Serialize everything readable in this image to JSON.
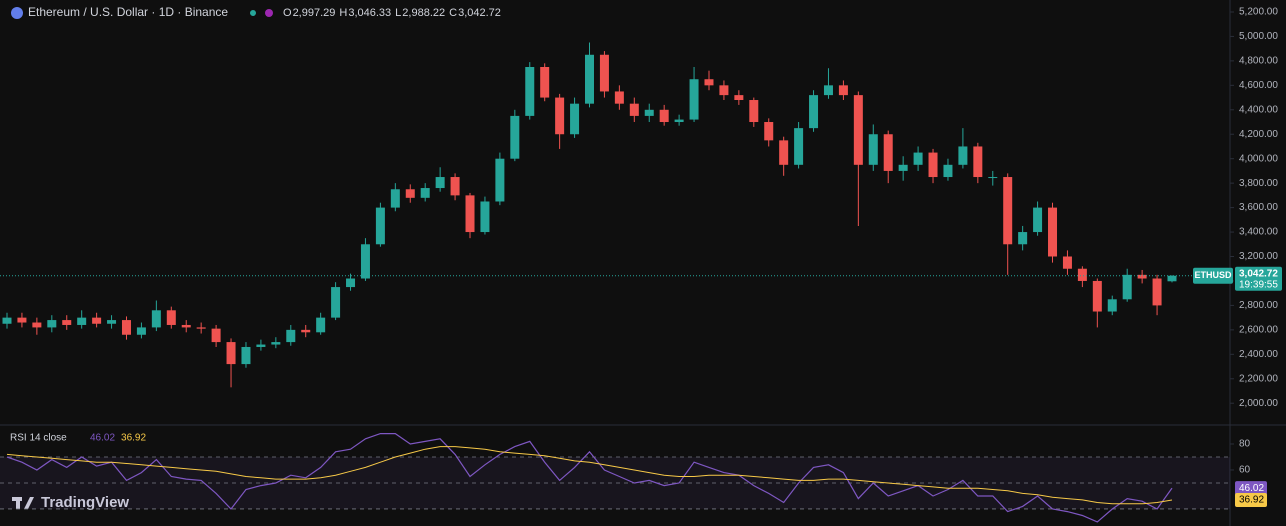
{
  "header": {
    "title": "Ethereum / U.S. Dollar · 1D · Binance",
    "ohlc": [
      {
        "key": "O",
        "text": "2,997.29"
      },
      {
        "key": "H",
        "text": "3,046.33"
      },
      {
        "key": "L",
        "text": "2,988.22"
      },
      {
        "key": "C",
        "text": "3,042.72"
      }
    ],
    "watermark": "TradingView"
  },
  "chart_data": [
    {
      "type": "candlestick",
      "up_color": "#26a69a",
      "down_color": "#ef5350",
      "open": [
        2650,
        2700,
        2660,
        2620,
        2680,
        2640,
        2700,
        2650,
        2680,
        2560,
        2620,
        2760,
        2640,
        2620,
        2610,
        2500,
        2320,
        2460,
        2480,
        2500,
        2600,
        2580,
        2700,
        2950,
        3020,
        3300,
        3600,
        3750,
        3680,
        3760,
        3850,
        3700,
        3400,
        3650,
        4000,
        4350,
        4750,
        4500,
        4200,
        4450,
        4850,
        4550,
        4450,
        4350,
        4400,
        4300,
        4320,
        4650,
        4600,
        4520,
        4480,
        4300,
        4150,
        3950,
        4250,
        4520,
        4600,
        4520,
        3950,
        4200,
        3900,
        3950,
        4050,
        3850,
        3950,
        4100,
        3850,
        3850,
        3300,
        3400,
        3600,
        3200,
        3100,
        3000,
        2750,
        2850,
        3050,
        3020,
        2997.29
      ],
      "high": [
        2740,
        2740,
        2700,
        2720,
        2720,
        2760,
        2740,
        2720,
        2710,
        2660,
        2840,
        2790,
        2680,
        2660,
        2640,
        2530,
        2500,
        2520,
        2540,
        2640,
        2640,
        2740,
        2990,
        3060,
        3350,
        3640,
        3800,
        3790,
        3800,
        3930,
        3880,
        3720,
        3690,
        4050,
        4400,
        4790,
        4780,
        4530,
        4500,
        4950,
        4880,
        4600,
        4500,
        4450,
        4440,
        4360,
        4750,
        4720,
        4640,
        4560,
        4500,
        4330,
        4180,
        4300,
        4560,
        4740,
        4640,
        4550,
        4280,
        4230,
        4020,
        4100,
        4080,
        4000,
        4250,
        4130,
        3900,
        3880,
        3450,
        3650,
        3640,
        3250,
        3120,
        3020,
        2880,
        3100,
        3090,
        3050,
        3046.33
      ],
      "low": [
        2610,
        2620,
        2560,
        2580,
        2600,
        2610,
        2620,
        2610,
        2520,
        2530,
        2590,
        2610,
        2580,
        2570,
        2460,
        2130,
        2290,
        2430,
        2450,
        2470,
        2540,
        2560,
        2680,
        2920,
        3000,
        3280,
        3570,
        3640,
        3650,
        3730,
        3660,
        3350,
        3380,
        3620,
        3980,
        4320,
        4470,
        4080,
        4170,
        4420,
        4500,
        4400,
        4300,
        4300,
        4270,
        4270,
        4300,
        4560,
        4480,
        4440,
        4260,
        4100,
        3860,
        3920,
        4220,
        4490,
        4480,
        3450,
        3900,
        3800,
        3820,
        3900,
        3800,
        3820,
        3920,
        3800,
        3780,
        3050,
        3250,
        3370,
        3150,
        3050,
        2950,
        2620,
        2720,
        2830,
        2980,
        2720,
        2988.22
      ],
      "close": [
        2700,
        2660,
        2620,
        2680,
        2640,
        2700,
        2650,
        2680,
        2560,
        2620,
        2760,
        2640,
        2620,
        2610,
        2500,
        2320,
        2460,
        2480,
        2500,
        2600,
        2580,
        2700,
        2950,
        3020,
        3300,
        3600,
        3750,
        3680,
        3760,
        3850,
        3700,
        3400,
        3650,
        4000,
        4350,
        4750,
        4500,
        4200,
        4450,
        4850,
        4550,
        4450,
        4350,
        4400,
        4300,
        4320,
        4650,
        4600,
        4520,
        4480,
        4300,
        4150,
        3950,
        4250,
        4520,
        4600,
        4520,
        3950,
        4200,
        3900,
        3950,
        4050,
        3850,
        3950,
        4100,
        3850,
        3850,
        3300,
        3400,
        3600,
        3200,
        3100,
        3000,
        2750,
        2850,
        3050,
        3020,
        2800,
        3042.72
      ],
      "ylim": [
        1830,
        5298
      ],
      "yticks": [
        {
          "value": 2000,
          "label": "2,000.00"
        },
        {
          "value": 2200,
          "label": "2,200.00"
        },
        {
          "value": 2400,
          "label": "2,400.00"
        },
        {
          "value": 2600,
          "label": "2,600.00"
        },
        {
          "value": 2800,
          "label": "2,800.00"
        },
        {
          "value": 3000,
          "label": "3,000.00"
        },
        {
          "value": 3200,
          "label": "3,200.00"
        },
        {
          "value": 3400,
          "label": "3,400.00"
        },
        {
          "value": 3600,
          "label": "3,600.00"
        },
        {
          "value": 3800,
          "label": "3,800.00"
        },
        {
          "value": 4000,
          "label": "4,000.00"
        },
        {
          "value": 4200,
          "label": "4,200.00"
        },
        {
          "value": 4400,
          "label": "4,400.00"
        },
        {
          "value": 4600,
          "label": "4,600.00"
        },
        {
          "value": 4800,
          "label": "4,800.00"
        },
        {
          "value": 5000,
          "label": "5,000.00"
        },
        {
          "value": 5200,
          "label": "5,200.00"
        }
      ],
      "last_tag": {
        "symbol": "ETHUSD",
        "price": "3,042.72",
        "countdown": "19:39:55"
      }
    },
    {
      "type": "line",
      "title": "RSI 14 close",
      "ylim": [
        21.5,
        92.3
      ],
      "yticks": [
        80,
        60
      ],
      "levels": [
        70,
        50,
        30
      ],
      "series": [
        {
          "color": "#7e57c2",
          "last_label": "46.02",
          "values": [
            70,
            66,
            60,
            68,
            62,
            70,
            63,
            66,
            52,
            58,
            68,
            55,
            53,
            52,
            42,
            30,
            45,
            48,
            50,
            56,
            54,
            62,
            74,
            76,
            84,
            88,
            88,
            80,
            82,
            84,
            72,
            55,
            64,
            72,
            78,
            82,
            66,
            52,
            62,
            74,
            60,
            55,
            50,
            52,
            48,
            50,
            66,
            62,
            58,
            56,
            48,
            42,
            35,
            50,
            62,
            64,
            58,
            38,
            50,
            40,
            44,
            48,
            40,
            45,
            52,
            40,
            40,
            28,
            32,
            40,
            30,
            28,
            25,
            20,
            30,
            38,
            36,
            30,
            46.02
          ]
        },
        {
          "color": "#f7c948",
          "last_label": "36.92",
          "values": [
            72,
            71,
            70,
            69,
            68,
            67,
            66,
            66,
            65,
            64,
            63,
            62,
            61,
            60,
            59,
            57,
            55,
            54,
            53,
            53,
            53,
            54,
            56,
            59,
            62,
            66,
            70,
            73,
            76,
            78,
            78,
            77,
            76,
            74,
            73,
            72,
            71,
            69,
            67,
            66,
            64,
            62,
            60,
            58,
            56,
            55,
            55,
            56,
            56,
            56,
            55,
            54,
            53,
            52,
            52,
            53,
            53,
            52,
            51,
            50,
            49,
            48,
            47,
            46,
            46,
            46,
            45,
            44,
            42,
            41,
            39,
            38,
            37,
            35,
            34,
            34,
            34,
            35,
            36.92
          ]
        }
      ]
    }
  ]
}
